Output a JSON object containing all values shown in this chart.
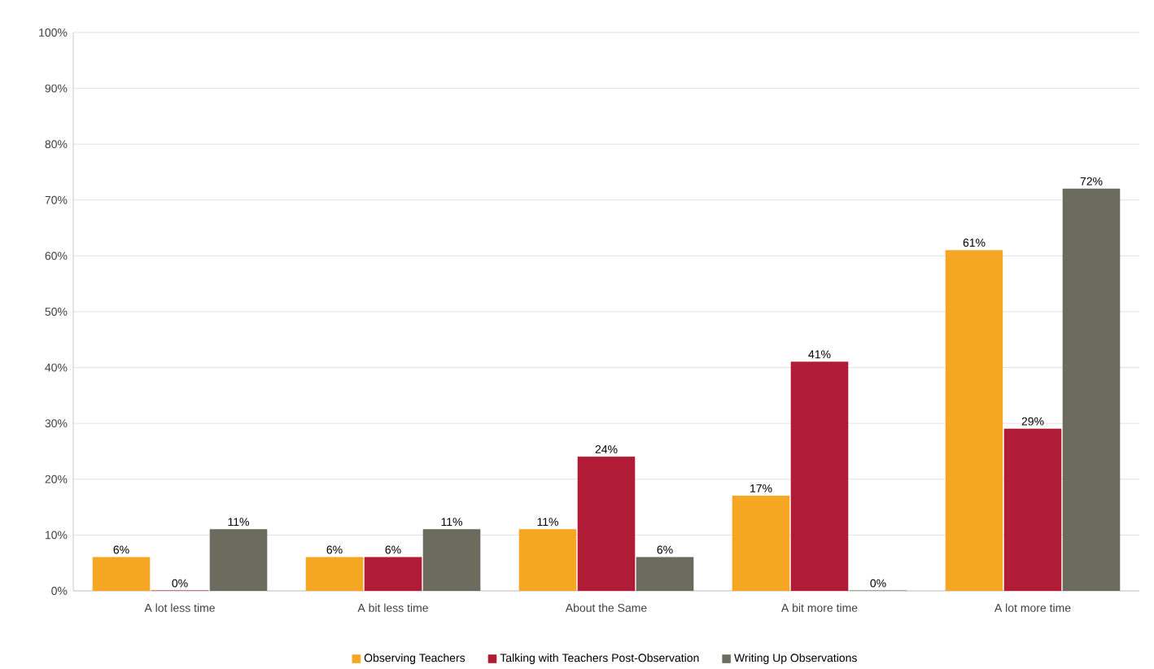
{
  "chart_data": {
    "type": "bar",
    "categories": [
      "A lot less time",
      "A bit less time",
      "About the Same",
      "A bit more time",
      "A lot more time"
    ],
    "series": [
      {
        "name": "Observing Teachers",
        "color": "#f5a623",
        "values": [
          6,
          6,
          11,
          17,
          61
        ],
        "value_labels": [
          "6%",
          "6%",
          "11%",
          "17%",
          "61%"
        ]
      },
      {
        "name": "Talking with Teachers Post-Observation",
        "color": "#b01c35",
        "values": [
          0,
          6,
          24,
          41,
          29
        ],
        "value_labels": [
          "0%",
          "6%",
          "24%",
          "41%",
          "29%"
        ]
      },
      {
        "name": "Writing Up Observations",
        "color": "#6b6b5e",
        "values": [
          11,
          11,
          6,
          0,
          72
        ],
        "value_labels": [
          "11%",
          "11%",
          "6%",
          "0%",
          "72%"
        ]
      }
    ],
    "ylim": [
      0,
      100
    ],
    "yticks": [
      {
        "value": 0,
        "label": "0%"
      },
      {
        "value": 10,
        "label": "10%"
      },
      {
        "value": 20,
        "label": "20%"
      },
      {
        "value": 30,
        "label": "30%"
      },
      {
        "value": 40,
        "label": "40%"
      },
      {
        "value": 50,
        "label": "50%"
      },
      {
        "value": 60,
        "label": "60%"
      },
      {
        "value": 70,
        "label": "70%"
      },
      {
        "value": 80,
        "label": "80%"
      },
      {
        "value": 90,
        "label": "90%"
      },
      {
        "value": 100,
        "label": "100%"
      }
    ],
    "grid": "y",
    "legend": "bottom"
  }
}
